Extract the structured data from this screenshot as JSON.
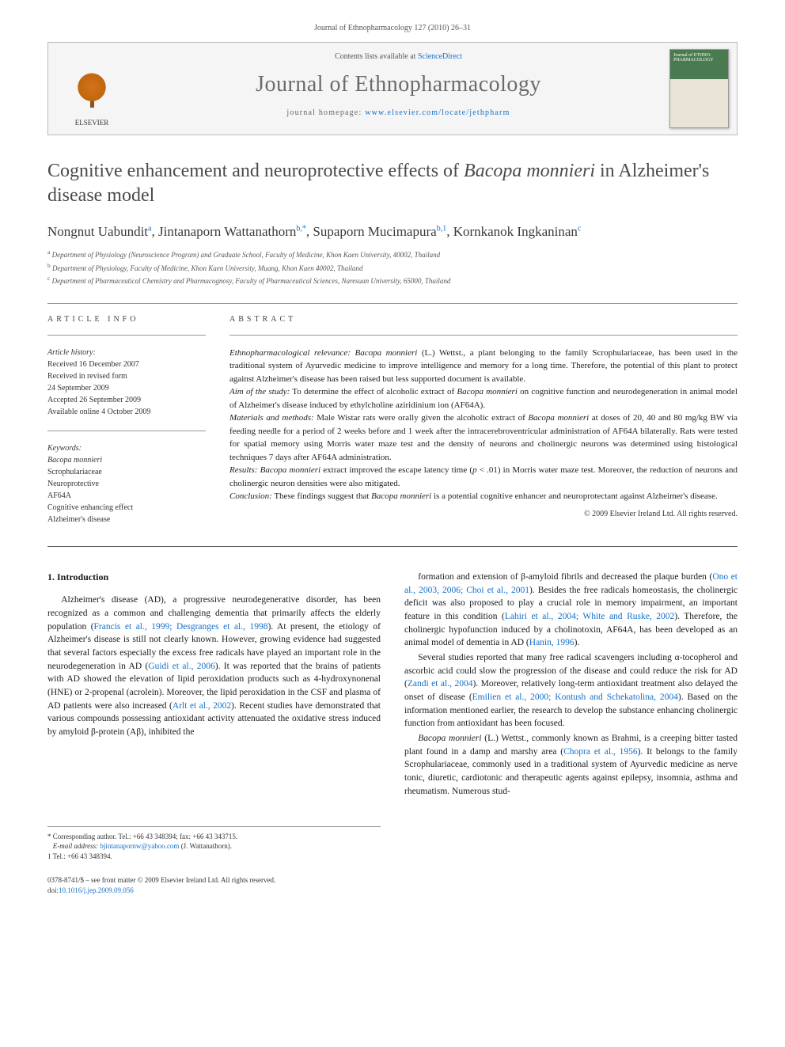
{
  "header": {
    "citation": "Journal of Ethnopharmacology 127 (2010) 26–31"
  },
  "banner": {
    "contents_prefix": "Contents lists available at ",
    "contents_link": "ScienceDirect",
    "journal_title": "Journal of Ethnopharmacology",
    "homepage_prefix": "journal homepage: ",
    "homepage_link": "www.elsevier.com/locate/jethpharm",
    "elsevier_label": "ELSEVIER",
    "cover_text": "Journal of\nETHNO-\nPHARMACOLOGY"
  },
  "title": {
    "pre": "Cognitive enhancement and neuroprotective effects of ",
    "italic": "Bacopa monnieri",
    "post": " in Alzheimer's disease model"
  },
  "authors": [
    {
      "name": "Nongnut Uabundit",
      "sup": "a"
    },
    {
      "name": "Jintanaporn Wattanathorn",
      "sup": "b,*"
    },
    {
      "name": "Supaporn Mucimapura",
      "sup": "b,1"
    },
    {
      "name": "Kornkanok Ingkaninan",
      "sup": "c"
    }
  ],
  "affiliations": [
    {
      "sup": "a",
      "text": "Department of Physiology (Neuroscience Program) and Graduate School, Faculty of Medicine, Khon Kaen University, 40002, Thailand"
    },
    {
      "sup": "b",
      "text": "Department of Physiology, Faculty of Medicine, Khon Kaen University, Muang, Khon Kaen 40002, Thailand"
    },
    {
      "sup": "c",
      "text": "Department of Pharmaceutical Chemistry and Pharmacognosy, Faculty of Pharmaceutical Sciences, Naresuan University, 65000, Thailand"
    }
  ],
  "info": {
    "head": "article info",
    "history_label": "Article history:",
    "history": [
      "Received 16 December 2007",
      "Received in revised form",
      "24 September 2009",
      "Accepted 26 September 2009",
      "Available online 4 October 2009"
    ],
    "keywords_label": "Keywords:",
    "keywords": [
      "Bacopa monnieri",
      "Scrophulariaceae",
      "Neuroprotective",
      "AF64A",
      "Cognitive enhancing effect",
      "Alzheimer's disease"
    ]
  },
  "abstract": {
    "head": "abstract",
    "segments": [
      {
        "head": "Ethnopharmacological relevance:",
        "body_parts": [
          {
            "t": " ",
            "i": false
          },
          {
            "t": "Bacopa monnieri",
            "i": true
          },
          {
            "t": " (L.) Wettst., a plant belonging to the family Scrophulariaceae, has been used in the traditional system of Ayurvedic medicine to improve intelligence and memory for a long time. Therefore, the potential of this plant to protect against Alzheimer's disease has been raised but less supported document is available.",
            "i": false
          }
        ]
      },
      {
        "head": "Aim of the study:",
        "body_parts": [
          {
            "t": " To determine the effect of alcoholic extract of ",
            "i": false
          },
          {
            "t": "Bacopa monnieri",
            "i": true
          },
          {
            "t": " on cognitive function and neurodegeneration in animal model of Alzheimer's disease induced by ethylcholine aziridinium ion (AF64A).",
            "i": false
          }
        ]
      },
      {
        "head": "Materials and methods:",
        "body_parts": [
          {
            "t": " Male Wistar rats were orally given the alcoholic extract of ",
            "i": false
          },
          {
            "t": "Bacopa monnieri",
            "i": true
          },
          {
            "t": " at doses of 20, 40 and 80 mg/kg BW via feeding needle for a period of 2 weeks before and 1 week after the intracerebroventricular administration of AF64A bilaterally. Rats were tested for spatial memory using Morris water maze test and the density of neurons and cholinergic neurons was determined using histological techniques 7 days after AF64A administration.",
            "i": false
          }
        ]
      },
      {
        "head": "Results:",
        "body_parts": [
          {
            "t": " ",
            "i": false
          },
          {
            "t": "Bacopa monnieri",
            "i": true
          },
          {
            "t": " extract improved the escape latency time (",
            "i": false
          },
          {
            "t": "p",
            "i": true
          },
          {
            "t": " < .01) in Morris water maze test. Moreover, the reduction of neurons and cholinergic neuron densities were also mitigated.",
            "i": false
          }
        ]
      },
      {
        "head": "Conclusion:",
        "body_parts": [
          {
            "t": " These findings suggest that ",
            "i": false
          },
          {
            "t": "Bacopa monnieri",
            "i": true
          },
          {
            "t": " is a potential cognitive enhancer and neuroprotectant against Alzheimer's disease.",
            "i": false
          }
        ]
      }
    ],
    "copyright": "© 2009 Elsevier Ireland Ltd. All rights reserved."
  },
  "body": {
    "section_num": "1.",
    "section_title": "Introduction",
    "left_paras": [
      {
        "parts": [
          {
            "t": "Alzheimer's disease (AD), a progressive neurodegenerative disorder, has been recognized as a common and challenging dementia that primarily affects the elderly population ("
          },
          {
            "t": "Francis et al., 1999; Desgranges et al., 1998",
            "cite": true
          },
          {
            "t": "). At present, the etiology of Alzheimer's disease is still not clearly known. However, growing evidence had suggested that several factors especially the excess free radicals have played an important role in the neurodegeneration in AD ("
          },
          {
            "t": "Guidi et al., 2006",
            "cite": true
          },
          {
            "t": "). It was reported that the brains of patients with AD showed the elevation of lipid peroxidation products such as 4-hydroxynonenal (HNE) or 2-propenal (acrolein). Moreover, the lipid peroxidation in the CSF and plasma of AD patients were also increased ("
          },
          {
            "t": "Arlt et al., 2002",
            "cite": true
          },
          {
            "t": "). Recent studies have demonstrated that various compounds possessing antioxidant activity attenuated the oxidative stress induced by amyloid β-protein (Aβ), inhibited the"
          }
        ]
      }
    ],
    "right_paras": [
      {
        "parts": [
          {
            "t": "formation and extension of β-amyloid fibrils and decreased the plaque burden ("
          },
          {
            "t": "Ono et al., 2003, 2006; Choi et al., 2001",
            "cite": true
          },
          {
            "t": "). Besides the free radicals homeostasis, the cholinergic deficit was also proposed to play a crucial role in memory impairment, an important feature in this condition ("
          },
          {
            "t": "Lahiri et al., 2004; White and Ruske, 2002",
            "cite": true
          },
          {
            "t": "). Therefore, the cholinergic hypofunction induced by a cholinotoxin, AF64A, has been developed as an animal model of dementia in AD ("
          },
          {
            "t": "Hanin, 1996",
            "cite": true
          },
          {
            "t": ")."
          }
        ]
      },
      {
        "parts": [
          {
            "t": "Several studies reported that many free radical scavengers including α-tocopherol and ascorbic acid could slow the progression of the disease and could reduce the risk for AD ("
          },
          {
            "t": "Zandi et al., 2004",
            "cite": true
          },
          {
            "t": "). Moreover, relatively long-term antioxidant treatment also delayed the onset of disease ("
          },
          {
            "t": "Emilien et al., 2000; Kontush and Schekatolina, 2004",
            "cite": true
          },
          {
            "t": "). Based on the information mentioned earlier, the research to develop the substance enhancing cholinergic function from antioxidant has been focused."
          }
        ]
      },
      {
        "parts": [
          {
            "t": "Bacopa monnieri",
            "i": true
          },
          {
            "t": " (L.) Wettst., commonly known as Brahmi, is a creeping bitter tasted plant found in a damp and marshy area ("
          },
          {
            "t": "Chopra et al., 1956",
            "cite": true
          },
          {
            "t": "). It belongs to the family Scrophulariaceae, commonly used in a traditional system of Ayurvedic medicine as nerve tonic, diuretic, cardiotonic and therapeutic agents against epilepsy, insomnia, asthma and rheumatism. Numerous stud-"
          }
        ]
      }
    ]
  },
  "footnotes": {
    "corr": "* Corresponding author. Tel.: +66 43 348394; fax: +66 43 343715.",
    "email_label": "E-mail address:",
    "email": "bjintanapornw@yahoo.com",
    "email_who": "(J. Wattanathorn).",
    "tel": "1 Tel.: +66 43 348394."
  },
  "footer": {
    "front": "0378-8741/$ – see front matter © 2009 Elsevier Ireland Ltd. All rights reserved.",
    "doi_label": "doi:",
    "doi": "10.1016/j.jep.2009.09.056"
  },
  "colors": {
    "link": "#1470c9",
    "text": "#2a2a2a",
    "rule": "#999999",
    "banner_bg": "#f5f5f5"
  }
}
